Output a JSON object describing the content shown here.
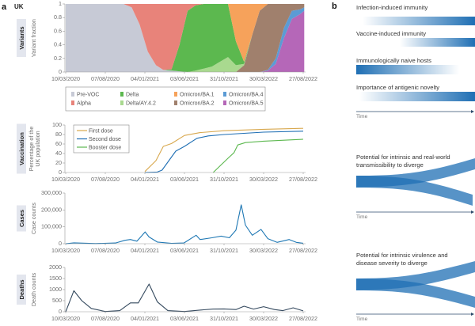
{
  "panel_a": {
    "letter": "a",
    "country": "UK"
  },
  "panel_b": {
    "letter": "b",
    "gradients": [
      {
        "label": "Infection-induced immunity",
        "direction": "increasing"
      },
      {
        "label": "Vaccine-induced immunity",
        "direction": "increasing"
      },
      {
        "label": "Immunologically naive hosts",
        "direction": "decreasing"
      },
      {
        "label": "Importance of antigenic novelty",
        "direction": "increasing"
      }
    ],
    "divergence": [
      {
        "line1": "Potential for intrinsic and real-world",
        "line2": "transmissibility to diverge"
      },
      {
        "line1": "Potential for intrinsic virulence and",
        "line2": "disease severity to diverge"
      }
    ],
    "time_label": "Time",
    "color": "#1f6fb4"
  },
  "x_ticks": [
    "10/03/2020",
    "07/08/2020",
    "04/01/2021",
    "03/06/2021",
    "31/10/2021",
    "30/03/2022",
    "27/08/2022"
  ],
  "chart_data": [
    {
      "type": "area",
      "stacked": true,
      "category_label": "Variants",
      "ylabel": "Variant fraction",
      "ylim": [
        0,
        1
      ],
      "yticks": [
        "0",
        "0.2",
        "0.4",
        "0.6",
        "0.8",
        "1"
      ],
      "variants": [
        {
          "name": "Pre-VOC",
          "color": "#c7cad6"
        },
        {
          "name": "Alpha",
          "color": "#e8837a"
        },
        {
          "name": "Delta",
          "color": "#5cb84f"
        },
        {
          "name": "Delta/AY.4.2",
          "color": "#a9d98f"
        },
        {
          "name": "Omicron/BA.1",
          "color": "#f6a25b"
        },
        {
          "name": "Omicron/BA.2",
          "color": "#a0806d"
        },
        {
          "name": "Omicron/BA.4",
          "color": "#5b9bd5"
        },
        {
          "name": "Omicron/BA.5",
          "color": "#b567b8"
        }
      ],
      "dates": [
        "2020-03-10",
        "2020-04-15",
        "2020-05-15",
        "2020-06-15",
        "2020-07-15",
        "2020-08-15",
        "2020-09-15",
        "2020-10-15",
        "2020-11-15",
        "2020-12-15",
        "2021-01-15",
        "2021-02-15",
        "2021-03-15",
        "2021-04-15",
        "2021-05-15",
        "2021-06-15",
        "2021-07-15",
        "2021-08-15",
        "2021-09-15",
        "2021-10-15",
        "2021-11-15",
        "2021-12-15",
        "2022-01-15",
        "2022-02-15",
        "2022-03-15",
        "2022-04-15",
        "2022-05-15",
        "2022-06-15",
        "2022-07-15",
        "2022-08-15",
        "2022-08-31"
      ],
      "fractions": {
        "Pre-VOC": [
          1,
          1,
          1,
          1,
          1,
          1,
          1,
          1,
          0.95,
          0.7,
          0.3,
          0.1,
          0.03,
          0.02,
          0.01,
          0,
          0,
          0,
          0,
          0,
          0,
          0,
          0,
          0,
          0,
          0,
          0,
          0,
          0,
          0,
          0
        ],
        "Alpha": [
          0,
          0,
          0,
          0,
          0,
          0,
          0,
          0,
          0.05,
          0.3,
          0.7,
          0.9,
          0.97,
          0.96,
          0.6,
          0.1,
          0.02,
          0,
          0,
          0,
          0,
          0,
          0,
          0,
          0,
          0,
          0,
          0,
          0,
          0,
          0
        ],
        "Delta": [
          0,
          0,
          0,
          0,
          0,
          0,
          0,
          0,
          0,
          0,
          0,
          0,
          0,
          0.02,
          0.39,
          0.9,
          0.96,
          0.95,
          0.92,
          0.85,
          0.78,
          0.35,
          0.03,
          0,
          0,
          0,
          0,
          0,
          0,
          0,
          0
        ],
        "Delta/AY.4.2": [
          0,
          0,
          0,
          0,
          0,
          0,
          0,
          0,
          0,
          0,
          0,
          0,
          0,
          0,
          0,
          0,
          0.02,
          0.05,
          0.08,
          0.15,
          0.22,
          0.1,
          0.02,
          0,
          0,
          0,
          0,
          0,
          0,
          0,
          0
        ],
        "Omicron/BA.1": [
          0,
          0,
          0,
          0,
          0,
          0,
          0,
          0,
          0,
          0,
          0,
          0,
          0,
          0,
          0,
          0,
          0,
          0,
          0,
          0,
          0,
          0.55,
          0.85,
          0.45,
          0.1,
          0,
          0,
          0,
          0,
          0,
          0
        ],
        "Omicron/BA.2": [
          0,
          0,
          0,
          0,
          0,
          0,
          0,
          0,
          0,
          0,
          0,
          0,
          0,
          0,
          0,
          0,
          0,
          0,
          0,
          0,
          0,
          0,
          0.1,
          0.55,
          0.9,
          0.97,
          0.8,
          0.35,
          0.1,
          0.08,
          0.05
        ],
        "Omicron/BA.4": [
          0,
          0,
          0,
          0,
          0,
          0,
          0,
          0,
          0,
          0,
          0,
          0,
          0,
          0,
          0,
          0,
          0,
          0,
          0,
          0,
          0,
          0,
          0,
          0,
          0,
          0.01,
          0.08,
          0.15,
          0.12,
          0.07,
          0.05
        ],
        "Omicron/BA.5": [
          0,
          0,
          0,
          0,
          0,
          0,
          0,
          0,
          0,
          0,
          0,
          0,
          0,
          0,
          0,
          0,
          0,
          0,
          0,
          0,
          0,
          0,
          0,
          0,
          0,
          0.02,
          0.12,
          0.5,
          0.78,
          0.85,
          0.9
        ]
      }
    },
    {
      "type": "line",
      "category_label": "Vaccination",
      "ylabel_line1": "Percentage of the",
      "ylabel_line2": "UK population",
      "ylim": [
        0,
        100
      ],
      "yticks": [
        "0",
        "20",
        "40",
        "60",
        "80",
        "100"
      ],
      "legend": "top-left",
      "series": [
        {
          "name": "First dose",
          "color": "#d8a84e",
          "points": [
            [
              "2021-01-04",
              2
            ],
            [
              "2021-02-15",
              25
            ],
            [
              "2021-03-15",
              55
            ],
            [
              "2021-04-15",
              61
            ],
            [
              "2021-06-03",
              78
            ],
            [
              "2021-08-01",
              84
            ],
            [
              "2021-10-31",
              88
            ],
            [
              "2022-03-30",
              91
            ],
            [
              "2022-08-27",
              93
            ]
          ]
        },
        {
          "name": "Second dose",
          "color": "#1f6fb4",
          "points": [
            [
              "2021-01-04",
              0
            ],
            [
              "2021-02-20",
              1
            ],
            [
              "2021-03-10",
              5
            ],
            [
              "2021-05-01",
              45
            ],
            [
              "2021-06-03",
              55
            ],
            [
              "2021-07-20",
              72
            ],
            [
              "2021-09-01",
              77
            ],
            [
              "2021-10-31",
              80
            ],
            [
              "2022-03-30",
              85
            ],
            [
              "2022-08-27",
              87
            ]
          ]
        },
        {
          "name": "Booster dose",
          "color": "#5cb84f",
          "points": [
            [
              "2021-09-20",
              0
            ],
            [
              "2021-11-15",
              30
            ],
            [
              "2021-12-08",
              42
            ],
            [
              "2021-12-22",
              58
            ],
            [
              "2022-01-20",
              63
            ],
            [
              "2022-03-30",
              66
            ],
            [
              "2022-08-27",
              70
            ]
          ]
        }
      ]
    },
    {
      "type": "line",
      "category_label": "Cases",
      "ylabel": "Case counts",
      "ylim": [
        0,
        300000
      ],
      "yticks": [
        "0",
        "100,000",
        "200,000",
        "300,000"
      ],
      "color": "#1f78b4",
      "points": [
        [
          "2020-03-10",
          0
        ],
        [
          "2020-04-10",
          5000
        ],
        [
          "2020-07-01",
          1000
        ],
        [
          "2020-09-15",
          4000
        ],
        [
          "2020-10-20",
          20000
        ],
        [
          "2020-11-10",
          25000
        ],
        [
          "2020-12-05",
          15000
        ],
        [
          "2020-12-25",
          50000
        ],
        [
          "2021-01-05",
          70000
        ],
        [
          "2021-01-20",
          40000
        ],
        [
          "2021-02-20",
          10000
        ],
        [
          "2021-04-15",
          2500
        ],
        [
          "2021-06-01",
          4000
        ],
        [
          "2021-07-17",
          50000
        ],
        [
          "2021-08-01",
          25000
        ],
        [
          "2021-09-15",
          35000
        ],
        [
          "2021-10-20",
          45000
        ],
        [
          "2021-11-20",
          35000
        ],
        [
          "2021-12-15",
          80000
        ],
        [
          "2022-01-04",
          230000
        ],
        [
          "2022-01-20",
          110000
        ],
        [
          "2022-02-15",
          50000
        ],
        [
          "2022-03-20",
          85000
        ],
        [
          "2022-04-15",
          30000
        ],
        [
          "2022-05-20",
          8000
        ],
        [
          "2022-07-05",
          25000
        ],
        [
          "2022-08-01",
          8000
        ],
        [
          "2022-08-27",
          3000
        ]
      ]
    },
    {
      "type": "line",
      "category_label": "Deaths",
      "ylabel": "Death counts",
      "ylim": [
        0,
        2000
      ],
      "yticks": [
        "0",
        "500",
        "1000",
        "1500",
        "2000"
      ],
      "color": "#34495e",
      "points": [
        [
          "2020-03-10",
          0
        ],
        [
          "2020-04-10",
          950
        ],
        [
          "2020-05-10",
          500
        ],
        [
          "2020-06-15",
          150
        ],
        [
          "2020-08-07",
          10
        ],
        [
          "2020-10-01",
          50
        ],
        [
          "2020-11-10",
          400
        ],
        [
          "2020-12-10",
          400
        ],
        [
          "2021-01-20",
          1250
        ],
        [
          "2021-02-20",
          450
        ],
        [
          "2021-04-01",
          50
        ],
        [
          "2021-06-03",
          10
        ],
        [
          "2021-08-15",
          90
        ],
        [
          "2021-09-20",
          120
        ],
        [
          "2021-10-31",
          130
        ],
        [
          "2021-12-15",
          100
        ],
        [
          "2022-01-15",
          250
        ],
        [
          "2022-02-20",
          120
        ],
        [
          "2022-03-30",
          230
        ],
        [
          "2022-05-10",
          100
        ],
        [
          "2022-06-10",
          50
        ],
        [
          "2022-07-20",
          180
        ],
        [
          "2022-08-27",
          40
        ]
      ]
    }
  ]
}
